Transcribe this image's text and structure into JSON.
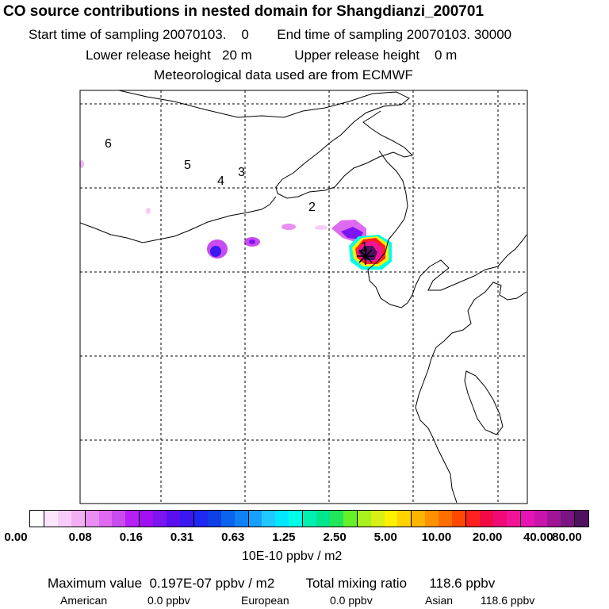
{
  "header": {
    "title": "CO  source contributions in nested domain for Shangdianzi_200701",
    "start_label": "Start time of sampling 20070103.    0",
    "end_label": "End time of sampling 20070103. 30000",
    "lower_release": "Lower release height   20 m",
    "upper_release": "Upper release height    0 m",
    "met_data": "Meteorological data used are from ECMWF"
  },
  "map": {
    "region_labels": [
      "1",
      "2",
      "3",
      "4",
      "5",
      "6"
    ],
    "station_marker": "star",
    "colors": {
      "coast": "#000000",
      "grid": "#000000"
    }
  },
  "colorbar": {
    "ticks": [
      "0.00",
      "0.08",
      "0.16",
      "0.31",
      "0.63",
      "1.25",
      "2.50",
      "5.00",
      "10.00",
      "20.00",
      "40.00",
      "80.00"
    ],
    "unit": "10E-10 ppbv / m2",
    "colors": [
      "#ffffff",
      "#fde6fd",
      "#f8ccf8",
      "#f2b0f2",
      "#e98ef2",
      "#dd6af0",
      "#c94cef",
      "#b61ff5",
      "#a010f0",
      "#7d14f2",
      "#5a10ee",
      "#3a18ef",
      "#1e28f0",
      "#0f3fe6",
      "#0a64ee",
      "#1080f5",
      "#18a0ff",
      "#22c8ff",
      "#00e8ff",
      "#00ffe6",
      "#00f0b0",
      "#00e68c",
      "#22e65a",
      "#66f028",
      "#a8f01e",
      "#d8f014",
      "#fff000",
      "#ffd200",
      "#ffb400",
      "#ff9100",
      "#ff6e00",
      "#ff4800",
      "#ff2020",
      "#f00a46",
      "#f00a78",
      "#f01496",
      "#e614b4",
      "#c814aa",
      "#a01496",
      "#7a1480",
      "#501060"
    ]
  },
  "summary": {
    "max_value": "Maximum value  0.197E-07 ppbv / m2",
    "total_mixing": "Total mixing ratio      118.6 ppbv",
    "american": "American",
    "american_val": "0.0 ppbv",
    "european": "European",
    "european_val": "0.0 ppbv",
    "asian": "Asian",
    "asian_val": "118.6 ppbv"
  }
}
